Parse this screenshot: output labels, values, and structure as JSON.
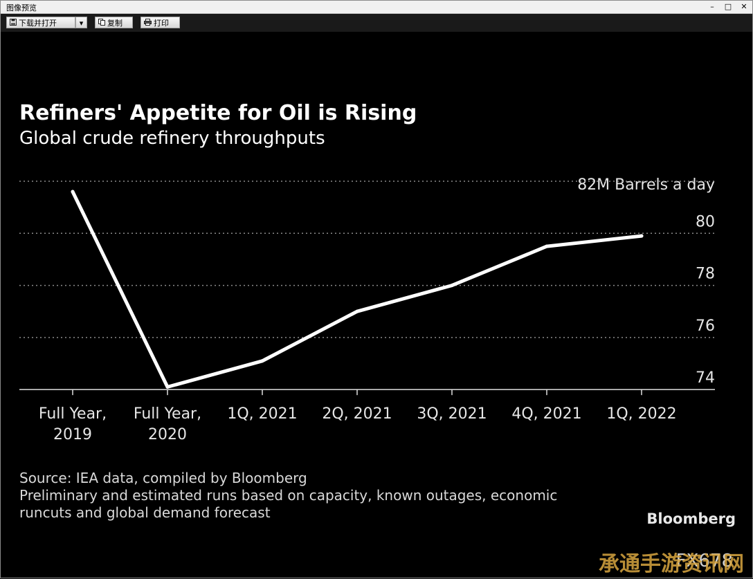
{
  "window": {
    "title": "图像预览",
    "controls": {
      "minimize": "–",
      "maximize": "□",
      "close": "✕"
    }
  },
  "toolbar": {
    "download_open_label": "下载并打开",
    "dropdown_symbol": "▾",
    "copy_label": "复制",
    "print_label": "打印",
    "icons": {
      "download": "floppy-icon",
      "copy": "copy-icon",
      "print": "printer-icon"
    }
  },
  "chart_data": {
    "type": "line",
    "title": "Refiners' Appetite for Oil is Rising",
    "subtitle": "Global crude refinery throughputs",
    "unit_label": "82M Barrels a day",
    "categories": [
      [
        "Full Year,",
        "2019"
      ],
      [
        "Full Year,",
        "2020"
      ],
      [
        "1Q, 2021"
      ],
      [
        "2Q, 2021"
      ],
      [
        "3Q, 2021"
      ],
      [
        "4Q, 2021"
      ],
      [
        "1Q, 2022"
      ]
    ],
    "values": [
      81.6,
      74.1,
      75.1,
      77.0,
      78.0,
      79.5,
      79.9
    ],
    "ylim": [
      73.5,
      82
    ],
    "yticks": [
      74,
      76,
      78,
      80
    ],
    "grid": true,
    "source_lines": [
      "Source: IEA data, compiled by Bloomberg",
      "Preliminary and estimated runs based on capacity, known outages, economic",
      "runcuts and global demand forecast"
    ],
    "brand": "Bloomberg",
    "code": "FX678",
    "colors": {
      "background": "#000000",
      "line": "#ffffff",
      "text": "#ffffff",
      "source_text": "#d9d9d9",
      "grid": "#8c8c8c"
    }
  },
  "watermark": "承通手游资讯网"
}
